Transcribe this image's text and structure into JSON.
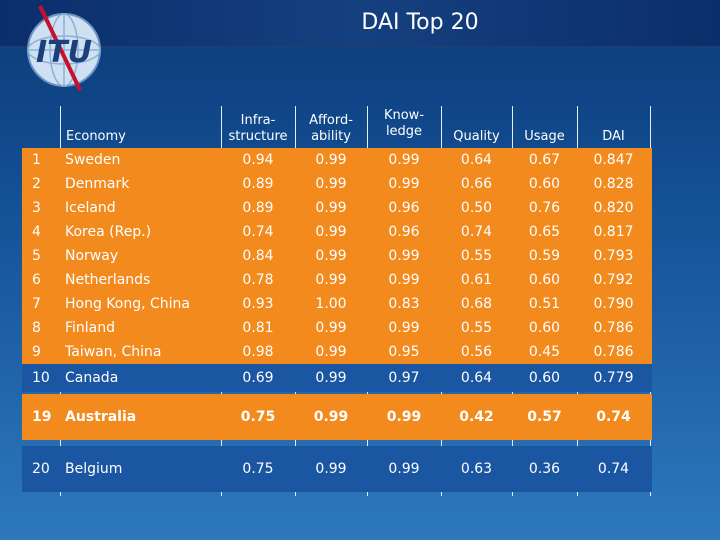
{
  "title": "DAI Top 20",
  "logo_text": "ITU",
  "headers": {
    "economy": "Economy",
    "infrastructure": [
      "Infra-",
      "structure"
    ],
    "affordability": [
      "Afford-",
      "ability"
    ],
    "knowledge": [
      "Know-",
      "ledge"
    ],
    "quality": "Quality",
    "usage": "Usage",
    "dai": "DAI"
  },
  "rows": [
    {
      "rank": "1",
      "economy": "Sweden",
      "infra": "0.94",
      "afford": "0.99",
      "know": "0.99",
      "quality": "0.64",
      "usage": "0.67",
      "dai": "0.847"
    },
    {
      "rank": "2",
      "economy": "Denmark",
      "infra": "0.89",
      "afford": "0.99",
      "know": "0.99",
      "quality": "0.66",
      "usage": "0.60",
      "dai": "0.828"
    },
    {
      "rank": "3",
      "economy": "Iceland",
      "infra": "0.89",
      "afford": "0.99",
      "know": "0.96",
      "quality": "0.50",
      "usage": "0.76",
      "dai": "0.820"
    },
    {
      "rank": "4",
      "economy": "Korea (Rep.)",
      "infra": "0.74",
      "afford": "0.99",
      "know": "0.96",
      "quality": "0.74",
      "usage": "0.65",
      "dai": "0.817"
    },
    {
      "rank": "5",
      "economy": "Norway",
      "infra": "0.84",
      "afford": "0.99",
      "know": "0.99",
      "quality": "0.55",
      "usage": "0.59",
      "dai": "0.793"
    },
    {
      "rank": "6",
      "economy": "Netherlands",
      "infra": "0.78",
      "afford": "0.99",
      "know": "0.99",
      "quality": "0.61",
      "usage": "0.60",
      "dai": "0.792"
    },
    {
      "rank": "7",
      "economy": "Hong Kong, China",
      "infra": "0.93",
      "afford": "1.00",
      "know": "0.83",
      "quality": "0.68",
      "usage": "0.51",
      "dai": "0.790"
    },
    {
      "rank": "8",
      "economy": "Finland",
      "infra": "0.81",
      "afford": "0.99",
      "know": "0.99",
      "quality": "0.55",
      "usage": "0.60",
      "dai": "0.786"
    },
    {
      "rank": "9",
      "economy": "Taiwan, China",
      "infra": "0.98",
      "afford": "0.99",
      "know": "0.95",
      "quality": "0.56",
      "usage": "0.45",
      "dai": "0.786"
    },
    {
      "rank": "10",
      "economy": "Canada",
      "infra": "0.69",
      "afford": "0.99",
      "know": "0.97",
      "quality": "0.64",
      "usage": "0.60",
      "dai": "0.779"
    },
    {
      "rank": "19",
      "economy": "Australia",
      "infra": "0.75",
      "afford": "0.99",
      "know": "0.99",
      "quality": "0.42",
      "usage": "0.57",
      "dai": "0.74"
    },
    {
      "rank": "20",
      "economy": "Belgium",
      "infra": "0.75",
      "afford": "0.99",
      "know": "0.99",
      "quality": "0.63",
      "usage": "0.36",
      "dai": "0.74"
    }
  ],
  "colors": {
    "orange": "#f28a1e",
    "blue": "#1b56a3"
  }
}
